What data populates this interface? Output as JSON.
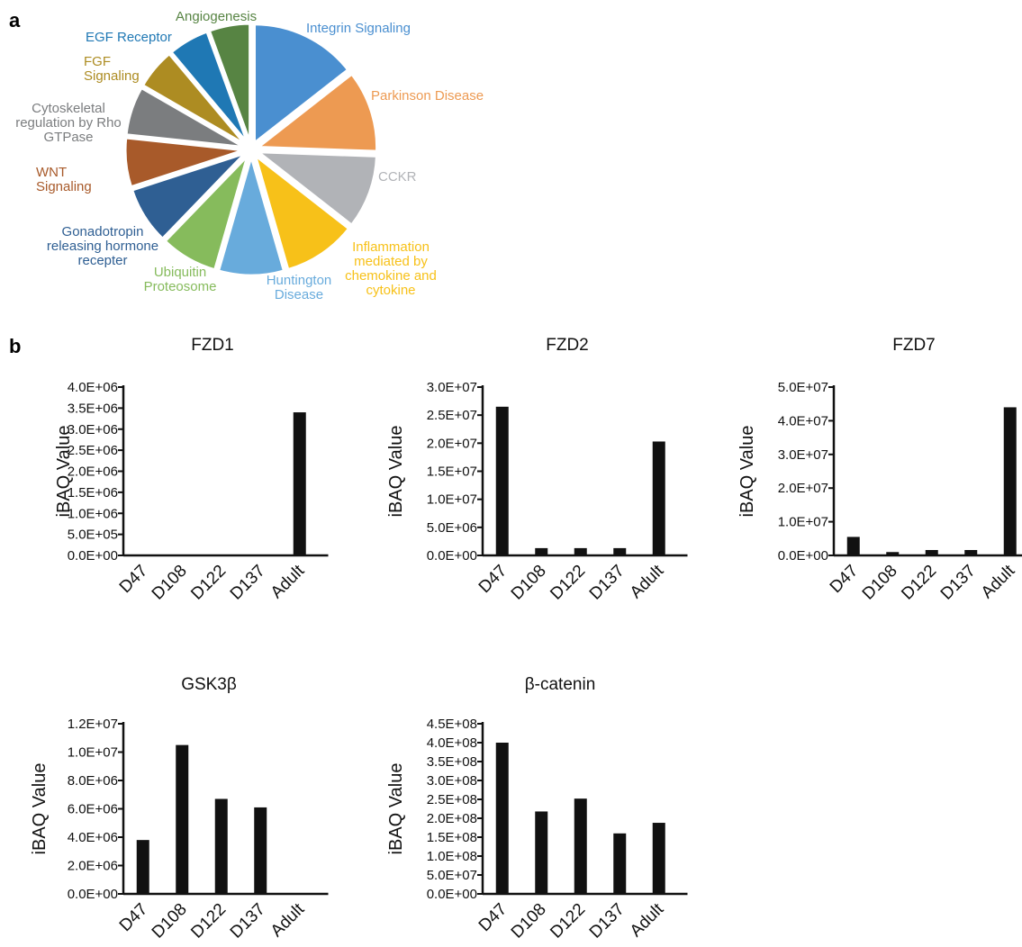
{
  "panels": {
    "a": "a",
    "b": "b"
  },
  "chart_data": [
    {
      "type": "pie",
      "panel": "a",
      "slices": [
        {
          "label": [
            "Integrin Signaling"
          ],
          "value": 13,
          "color": "#4a8fd0"
        },
        {
          "label": [
            "Parkinson Disease"
          ],
          "value": 10,
          "color": "#ed9a52"
        },
        {
          "label": [
            "CCKR"
          ],
          "value": 9,
          "color": "#b1b3b7"
        },
        {
          "label": [
            "Inflammation",
            "mediated by",
            "chemokine and",
            "cytokine"
          ],
          "value": 9,
          "color": "#f7c119"
        },
        {
          "label": [
            "Huntington",
            "Disease"
          ],
          "value": 8,
          "color": "#68abdc"
        },
        {
          "label": [
            "Ubiquitin",
            "Proteosome"
          ],
          "value": 7,
          "color": "#86bb5c"
        },
        {
          "label": [
            "Gonadotropin",
            "releasing hormone",
            "recepter"
          ],
          "value": 7,
          "color": "#2f5f93"
        },
        {
          "label": [
            "WNT",
            "Signaling"
          ],
          "value": 6,
          "color": "#a85a2a"
        },
        {
          "label": [
            "Cytoskeletal",
            "regulation by Rho",
            "GTPase"
          ],
          "value": 6,
          "color": "#7b7d7f"
        },
        {
          "label": [
            "FGF",
            "Signaling"
          ],
          "value": 5,
          "color": "#ad8c22"
        },
        {
          "label": [
            "EGF Receptor"
          ],
          "value": 5,
          "color": "#1f78b4"
        },
        {
          "label": [
            "Angiogenesis"
          ],
          "value": 5,
          "color": "#578443"
        }
      ]
    },
    {
      "type": "bar",
      "panel": "b",
      "title": "FZD1",
      "ylabel": "iBAQ Value",
      "categories": [
        "D47",
        "D108",
        "D122",
        "D137",
        "Adult"
      ],
      "values": [
        0,
        0,
        0,
        0,
        3400000
      ],
      "ylim": [
        0,
        4000000
      ],
      "yticks": [
        "0.0E+00",
        "5.0E+05",
        "1.0E+06",
        "1.5E+06",
        "2.0E+06",
        "2.5E+06",
        "3.0E+06",
        "3.5E+06",
        "4.0E+06"
      ],
      "bar_color": "#111111"
    },
    {
      "type": "bar",
      "panel": "b",
      "title": "FZD2",
      "ylabel": "iBAQ Value",
      "categories": [
        "D47",
        "D108",
        "D122",
        "D137",
        "Adult"
      ],
      "values": [
        26500000,
        1300000,
        1300000,
        1300000,
        20300000
      ],
      "ylim": [
        0,
        30000000
      ],
      "yticks": [
        "0.0E+00",
        "5.0E+06",
        "1.0E+07",
        "1.5E+07",
        "2.0E+07",
        "2.5E+07",
        "3.0E+07"
      ],
      "bar_color": "#111111"
    },
    {
      "type": "bar",
      "panel": "b",
      "title": "FZD7",
      "ylabel": "iBAQ Value",
      "categories": [
        "D47",
        "D108",
        "D122",
        "D137",
        "Adult"
      ],
      "values": [
        5500000,
        1000000,
        1600000,
        1600000,
        44000000
      ],
      "ylim": [
        0,
        50000000
      ],
      "yticks": [
        "0.0E+00",
        "1.0E+07",
        "2.0E+07",
        "3.0E+07",
        "4.0E+07",
        "5.0E+07"
      ],
      "bar_color": "#111111"
    },
    {
      "type": "bar",
      "panel": "b",
      "title": "GSK3β",
      "ylabel": "iBAQ Value",
      "categories": [
        "D47",
        "D108",
        "D122",
        "D137",
        "Adult"
      ],
      "values": [
        3800000,
        10500000,
        6700000,
        6100000,
        0
      ],
      "ylim": [
        0,
        12000000
      ],
      "yticks": [
        "0.0E+00",
        "2.0E+06",
        "4.0E+06",
        "6.0E+06",
        "8.0E+06",
        "1.0E+07",
        "1.2E+07"
      ],
      "bar_color": "#111111"
    },
    {
      "type": "bar",
      "panel": "b",
      "title": "β-catenin",
      "ylabel": "iBAQ Value",
      "categories": [
        "D47",
        "D108",
        "D122",
        "D137",
        "Adult"
      ],
      "values": [
        400000000,
        218000000,
        252000000,
        160000000,
        188000000
      ],
      "ylim": [
        0,
        450000000
      ],
      "yticks": [
        "0.0E+00",
        "5.0E+07",
        "1.0E+08",
        "1.5E+08",
        "2.0E+08",
        "2.5E+08",
        "3.0E+08",
        "3.5E+08",
        "4.0E+08",
        "4.5E+08"
      ],
      "bar_color": "#111111"
    }
  ]
}
